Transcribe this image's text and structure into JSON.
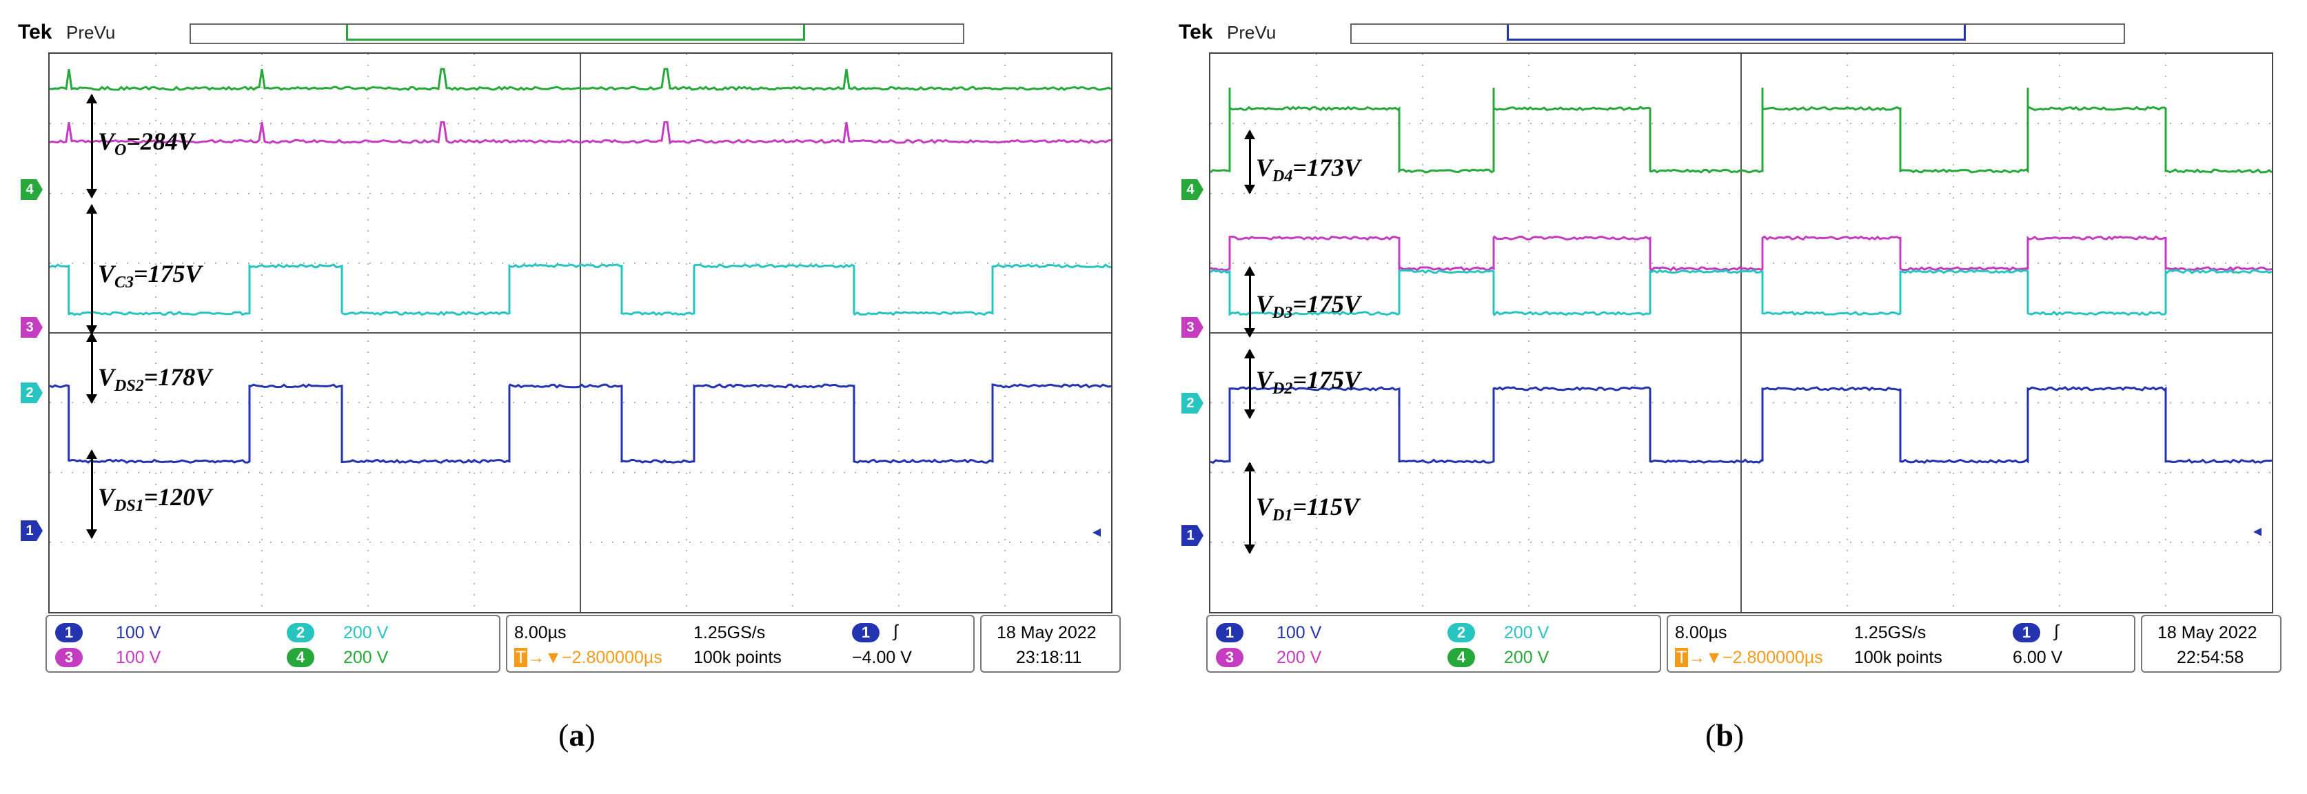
{
  "colors": {
    "ch1": "#2433b0",
    "ch2": "#28c4c0",
    "ch3": "#c43cc0",
    "ch4": "#26a83a",
    "trigger": "#f59b1a",
    "grid": "#9a9a9a"
  },
  "scopes": [
    {
      "caption_letter": "a",
      "brand": "Tek",
      "mode": "PreVu",
      "record_window_color": "#26a83a",
      "annotations": [
        {
          "main": "V",
          "sub": "O",
          "rest": "=284V"
        },
        {
          "main": "V",
          "sub": "C3",
          "rest": "=175V"
        },
        {
          "main": "V",
          "sub": "DS2",
          "rest": "=178V"
        },
        {
          "main": "V",
          "sub": "DS1",
          "rest": "=120V"
        }
      ],
      "channel_markers": [
        "4",
        "3",
        "2",
        "1"
      ],
      "trigger_marker": "T",
      "channels": [
        {
          "num": "1",
          "scale": "100 V"
        },
        {
          "num": "2",
          "scale": "200 V"
        },
        {
          "num": "3",
          "scale": "100 V"
        },
        {
          "num": "4",
          "scale": "200 V"
        }
      ],
      "timebase": "8.00µs",
      "sample_rate": "1.25GS/s",
      "trigger_delay": "▼−2.800000µs",
      "record_length": "100k points",
      "trigger_channel": "1",
      "trigger_slope": "∫",
      "trigger_level": "−4.00 V",
      "date": "18 May 2022",
      "time": "23:18:11"
    },
    {
      "caption_letter": "b",
      "brand": "Tek",
      "mode": "PreVu",
      "record_window_color": "#2433b0",
      "annotations": [
        {
          "main": "V",
          "sub": "D4",
          "rest": "=173V"
        },
        {
          "main": "V",
          "sub": "D3",
          "rest": "=175V"
        },
        {
          "main": "V",
          "sub": "D2",
          "rest": "=175V"
        },
        {
          "main": "V",
          "sub": "D1",
          "rest": "=115V"
        }
      ],
      "channel_markers": [
        "4",
        "3",
        "2",
        "1"
      ],
      "trigger_marker": "T",
      "channels": [
        {
          "num": "1",
          "scale": "100 V"
        },
        {
          "num": "2",
          "scale": "200 V"
        },
        {
          "num": "3",
          "scale": "200 V"
        },
        {
          "num": "4",
          "scale": "200 V"
        }
      ],
      "timebase": "8.00µs",
      "sample_rate": "1.25GS/s",
      "trigger_delay": "▼−2.800000µs",
      "record_length": "100k points",
      "trigger_channel": "1",
      "trigger_slope": "∫",
      "trigger_level": "6.00 V",
      "date": "18 May 2022",
      "time": "22:54:58"
    }
  ]
}
